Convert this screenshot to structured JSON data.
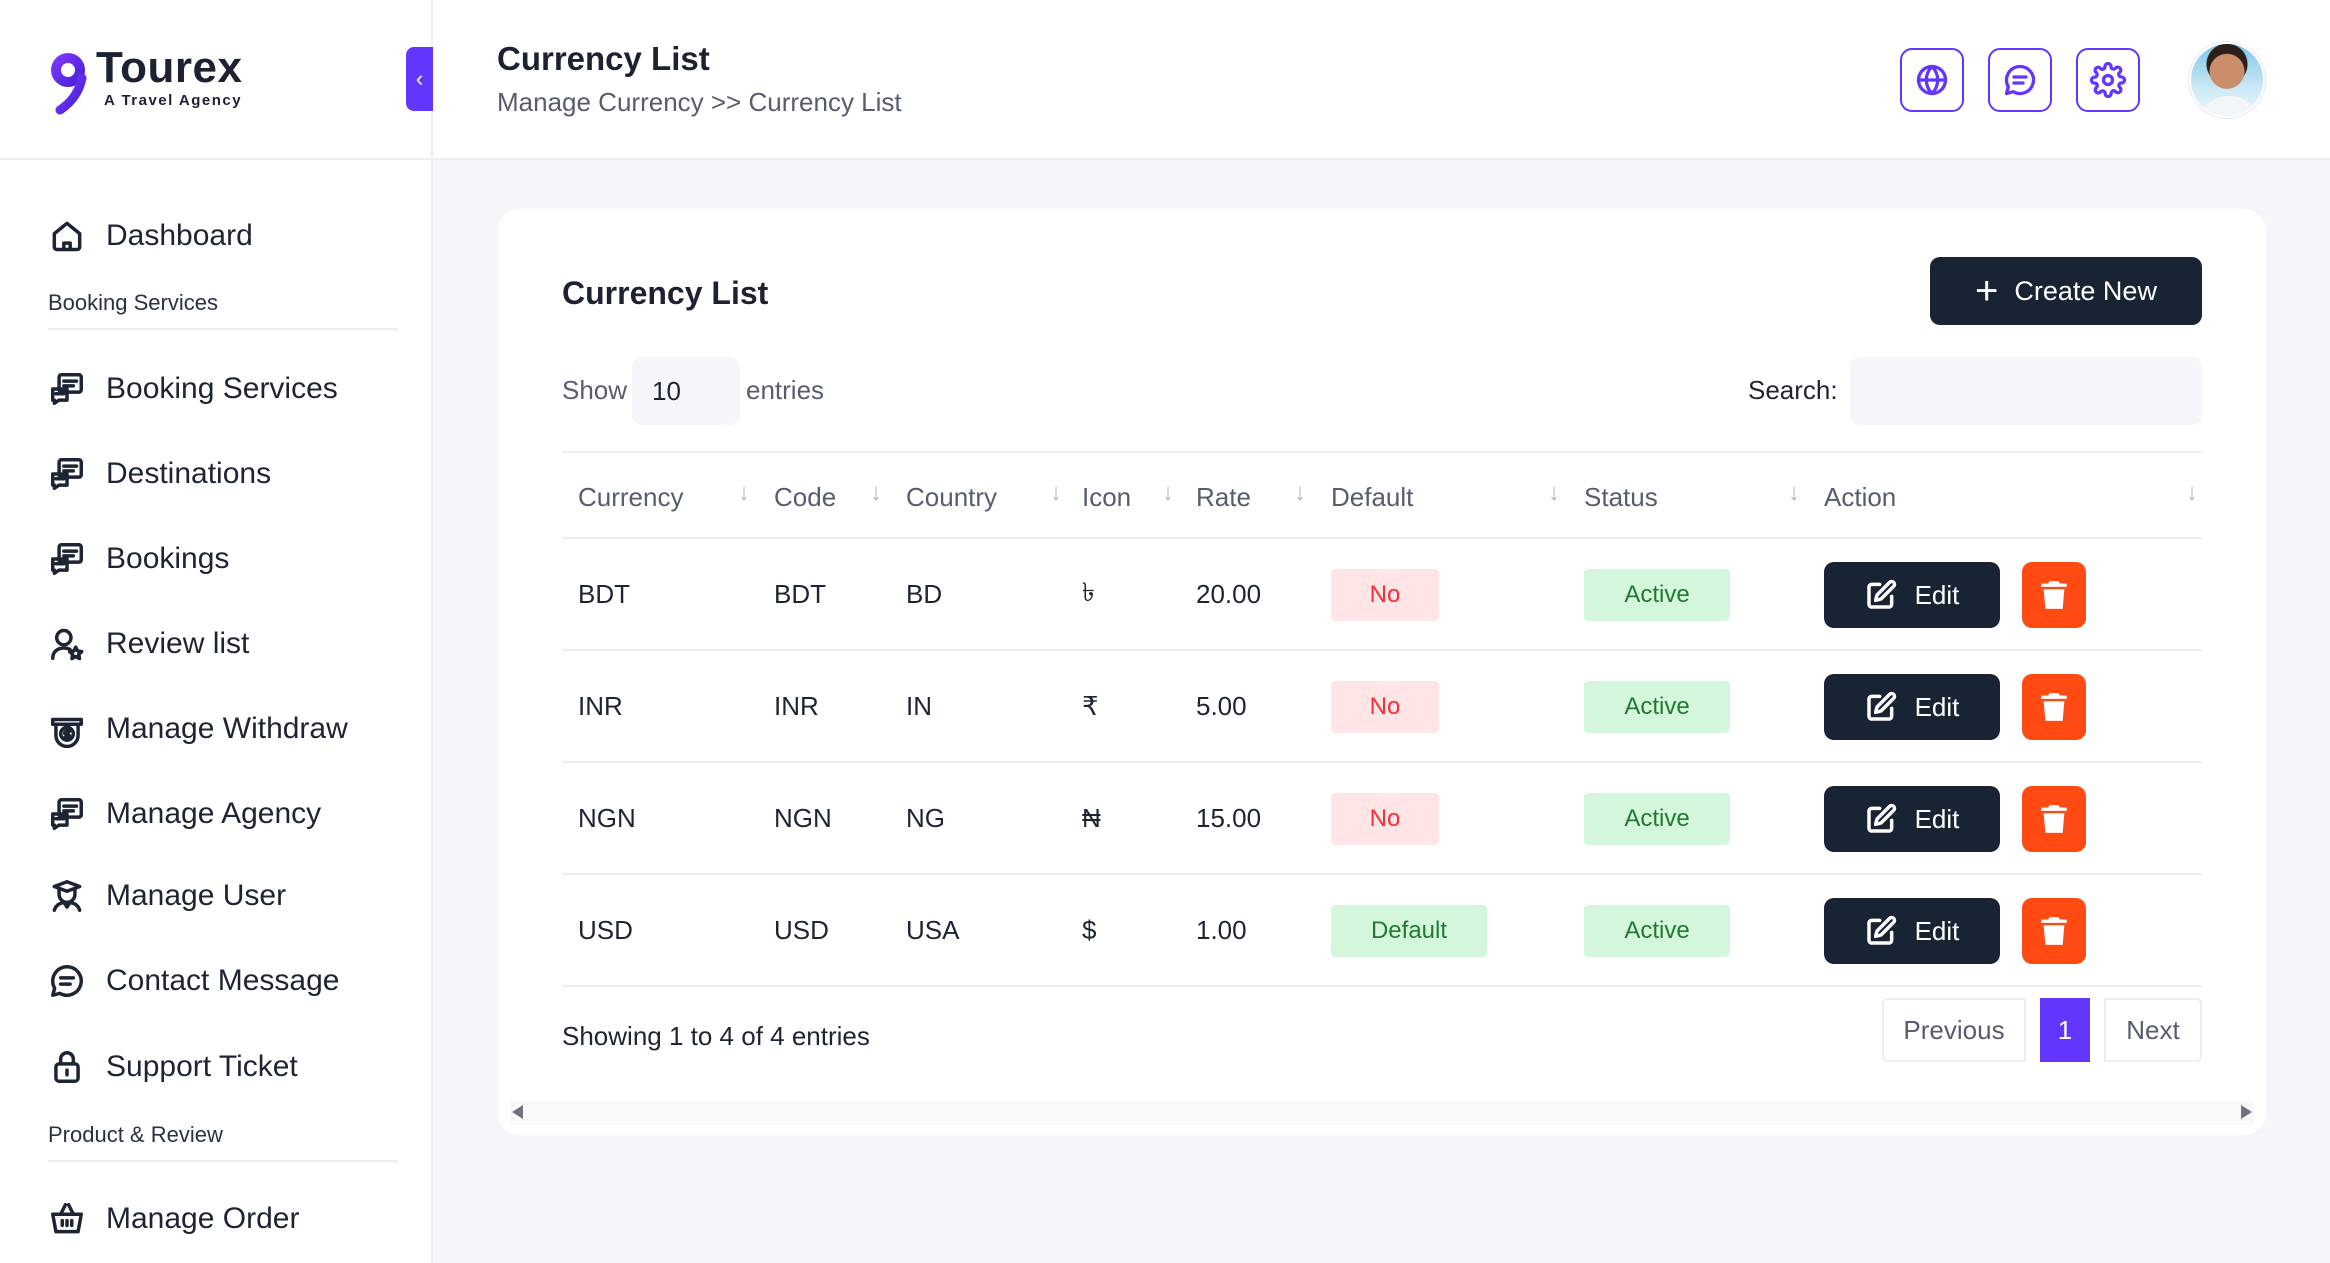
{
  "app": {
    "logo_title": "Tourex",
    "logo_subtitle": "A Travel Agency",
    "brand_color": "#6236ff"
  },
  "sidebar": {
    "collapse_icon": "chevron-left-icon",
    "items": [
      {
        "label": "Dashboard",
        "icon": "home-icon"
      },
      {
        "label": "Booking Services",
        "icon": "chat-list-icon"
      },
      {
        "label": "Destinations",
        "icon": "chat-list-icon"
      },
      {
        "label": "Bookings",
        "icon": "chat-list-icon"
      },
      {
        "label": "Review list",
        "icon": "user-star-icon"
      },
      {
        "label": "Manage Withdraw",
        "icon": "money-icon"
      },
      {
        "label": "Manage Agency",
        "icon": "chat-list-icon"
      },
      {
        "label": "Manage User",
        "icon": "user-graduate-icon"
      },
      {
        "label": "Contact Message",
        "icon": "message-icon"
      },
      {
        "label": "Support Ticket",
        "icon": "lock-icon"
      },
      {
        "label": "Manage Order",
        "icon": "basket-icon"
      }
    ],
    "sections": [
      "Booking Services",
      "Product & Review"
    ]
  },
  "header": {
    "title": "Currency List",
    "breadcrumb": "Manage Currency >> Currency List",
    "buttons": [
      "globe-icon",
      "message-icon",
      "gear-icon"
    ]
  },
  "card": {
    "title": "Currency List",
    "create_label": "Create New",
    "show_label": "Show",
    "show_value": "10",
    "entries_label": "entries",
    "search_label": "Search:",
    "search_value": ""
  },
  "table": {
    "columns": [
      "Currency",
      "Code",
      "Country",
      "Icon",
      "Rate",
      "Default",
      "Status",
      "Action"
    ],
    "rows": [
      {
        "currency": "BDT",
        "code": "BDT",
        "country": "BD",
        "icon": "৳",
        "rate": "20.00",
        "default": "No",
        "status": "Active",
        "edit": "Edit"
      },
      {
        "currency": "INR",
        "code": "INR",
        "country": "IN",
        "icon": "₹",
        "rate": "5.00",
        "default": "No",
        "status": "Active",
        "edit": "Edit"
      },
      {
        "currency": "NGN",
        "code": "NGN",
        "country": "NG",
        "icon": "₦",
        "rate": "15.00",
        "default": "No",
        "status": "Active",
        "edit": "Edit"
      },
      {
        "currency": "USD",
        "code": "USD",
        "country": "USA",
        "icon": "$",
        "rate": "1.00",
        "default": "Default",
        "status": "Active",
        "edit": "Edit"
      }
    ]
  },
  "footer": {
    "showing": "Showing 1 to 4 of 4 entries",
    "previous": "Previous",
    "page": "1",
    "next": "Next"
  }
}
